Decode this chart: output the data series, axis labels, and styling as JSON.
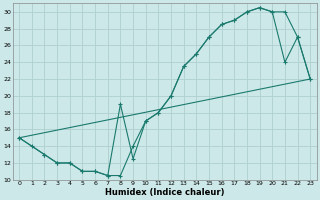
{
  "xlabel": "Humidex (Indice chaleur)",
  "bg_color": "#cde8e8",
  "grid_color": "#afd0d0",
  "line_color": "#1a7a6e",
  "xlim": [
    -0.5,
    23.5
  ],
  "ylim": [
    10,
    31
  ],
  "yticks": [
    10,
    12,
    14,
    16,
    18,
    20,
    22,
    24,
    26,
    28,
    30
  ],
  "xticks": [
    0,
    1,
    2,
    3,
    4,
    5,
    6,
    7,
    8,
    9,
    10,
    11,
    12,
    13,
    14,
    15,
    16,
    17,
    18,
    19,
    20,
    21,
    22,
    23
  ],
  "line1_x": [
    0,
    1,
    2,
    3,
    4,
    5,
    6,
    7,
    8,
    9,
    10,
    11,
    12,
    13,
    14,
    15,
    16,
    17,
    18,
    19,
    20,
    21,
    22,
    23
  ],
  "line1_y": [
    15,
    14,
    13,
    12,
    12,
    11,
    11,
    10.5,
    10.5,
    14,
    17,
    18,
    20,
    23.5,
    25,
    27,
    28.5,
    29,
    30,
    30.5,
    30,
    30,
    27,
    22
  ],
  "line2_x": [
    0,
    2,
    3,
    4,
    5,
    6,
    7,
    8,
    9,
    10,
    11,
    12,
    13,
    14,
    15,
    16,
    17,
    18,
    19,
    20,
    21,
    22,
    23
  ],
  "line2_y": [
    15,
    13,
    12,
    12,
    11,
    11,
    10.5,
    19,
    12.5,
    17,
    18,
    20,
    23.5,
    25,
    27,
    28.5,
    29,
    30,
    30.5,
    30,
    24,
    27,
    22
  ],
  "line3_x": [
    0,
    23
  ],
  "line3_y": [
    15,
    22
  ]
}
